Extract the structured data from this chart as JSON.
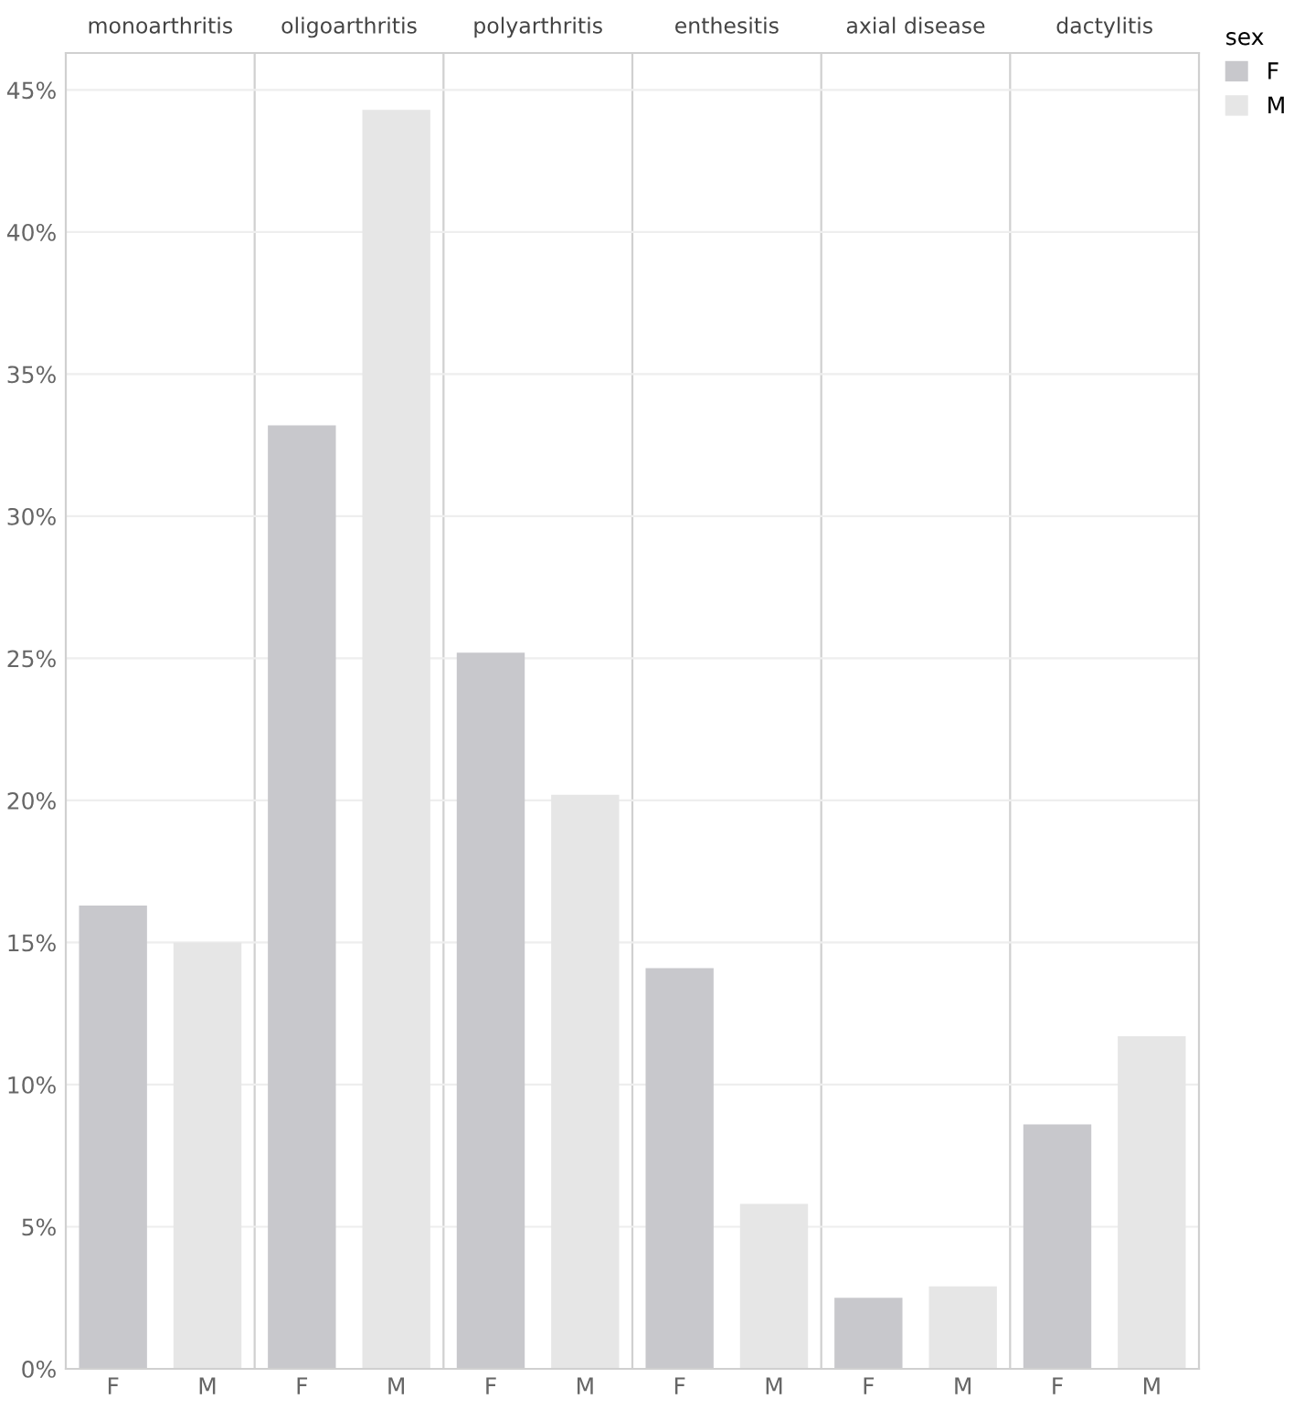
{
  "chart_data": {
    "type": "bar",
    "categories": [
      "monoarthritis",
      "oligoarthritis",
      "polyarthritis",
      "enthesitis",
      "axial disease",
      "dactylitis"
    ],
    "series": [
      {
        "name": "F",
        "color": "#c8c8cc",
        "values": [
          16.3,
          33.2,
          25.2,
          14.1,
          2.5,
          8.6
        ]
      },
      {
        "name": "M",
        "color": "#e6e6e6",
        "values": [
          15.0,
          44.3,
          20.2,
          5.8,
          2.9,
          11.7
        ]
      }
    ],
    "ylim": [
      0,
      46.3
    ],
    "yticks": [
      {
        "value": 0,
        "label": "0%"
      },
      {
        "value": 5,
        "label": "5%"
      },
      {
        "value": 10,
        "label": "10%"
      },
      {
        "value": 15,
        "label": "15%"
      },
      {
        "value": 20,
        "label": "20%"
      },
      {
        "value": 25,
        "label": "25%"
      },
      {
        "value": 30,
        "label": "30%"
      },
      {
        "value": 35,
        "label": "35%"
      },
      {
        "value": 40,
        "label": "40%"
      },
      {
        "value": 45,
        "label": "45%"
      }
    ],
    "grid": "y",
    "legend": "top right",
    "legend_title": "sex"
  }
}
